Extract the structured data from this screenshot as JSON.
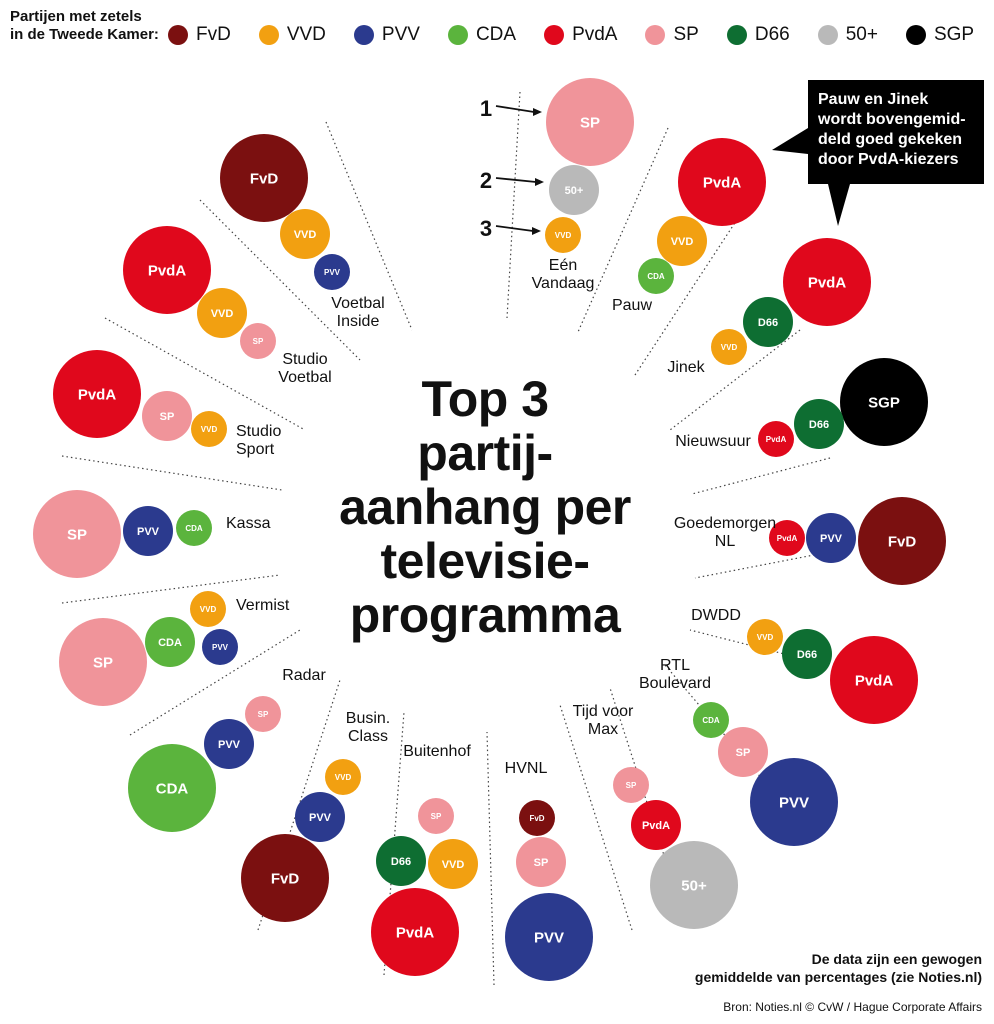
{
  "legend": {
    "title": "Partijen met zetels\nin de Tweede Kamer:",
    "items": [
      {
        "label": "FvD",
        "color": "#7b1010"
      },
      {
        "label": "VVD",
        "color": "#f2a011"
      },
      {
        "label": "PVV",
        "color": "#2b3a8e"
      },
      {
        "label": "CDA",
        "color": "#5bb43d"
      },
      {
        "label": "PvdA",
        "color": "#e0081c"
      },
      {
        "label": "SP",
        "color": "#f0949a"
      },
      {
        "label": "D66",
        "color": "#0e6e32"
      },
      {
        "label": "50+",
        "color": "#b9b9b9"
      },
      {
        "label": "SGP",
        "color": "#000000"
      }
    ]
  },
  "title": "Top 3\npartij-\naanhang per\ntelevisie-\nprogramma",
  "callout": "Pauw en Jinek\nwordt bovengemid-\ndeld goed gekeken\ndoor PvdA-kiezers",
  "rank_labels": [
    "1",
    "2",
    "3"
  ],
  "note": "De data zijn een gewogen\ngemiddelde van percentages (zie Noties.nl)",
  "source": "Bron: Noties.nl © CvW / Hague Corporate Affairs",
  "programmes": [
    {
      "name": "Eén Vandaag",
      "top3": [
        "SP",
        "50+",
        "VVD"
      ]
    },
    {
      "name": "Pauw",
      "top3": [
        "PvdA",
        "VVD",
        "CDA"
      ]
    },
    {
      "name": "Jinek",
      "top3": [
        "PvdA",
        "D66",
        "VVD"
      ]
    },
    {
      "name": "Nieuwsuur",
      "top3": [
        "SGP",
        "D66",
        "PvdA"
      ]
    },
    {
      "name": "Goedemorgen NL",
      "top3": [
        "FvD",
        "PVV",
        "PvdA"
      ]
    },
    {
      "name": "DWDD",
      "top3": [
        "PvdA",
        "D66",
        "VVD"
      ]
    },
    {
      "name": "RTL Boulevard",
      "top3": [
        "PVV",
        "SP",
        "CDA"
      ]
    },
    {
      "name": "Tijd voor Max",
      "top3": [
        "50+",
        "PvdA",
        "SP"
      ]
    },
    {
      "name": "HVNL",
      "top3": [
        "PVV",
        "SP",
        "FvD"
      ]
    },
    {
      "name": "Buitenhof",
      "top3": [
        "PvdA",
        "VVD",
        "D66",
        "SP"
      ]
    },
    {
      "name": "Busin. Class",
      "top3": [
        "FvD",
        "PVV",
        "VVD"
      ]
    },
    {
      "name": "Radar",
      "top3": [
        "CDA",
        "PVV",
        "SP"
      ]
    },
    {
      "name": "Vermist",
      "top3": [
        "SP",
        "CDA",
        "PVV",
        "VVD"
      ]
    },
    {
      "name": "Kassa",
      "top3": [
        "SP",
        "PVV",
        "CDA"
      ]
    },
    {
      "name": "Studio Sport",
      "top3": [
        "PvdA",
        "SP",
        "VVD"
      ]
    },
    {
      "name": "Studio Voetbal",
      "top3": [
        "PvdA",
        "VVD",
        "SP"
      ]
    },
    {
      "name": "Voetbal Inside",
      "top3": [
        "FvD",
        "VVD",
        "PVV"
      ]
    }
  ]
}
